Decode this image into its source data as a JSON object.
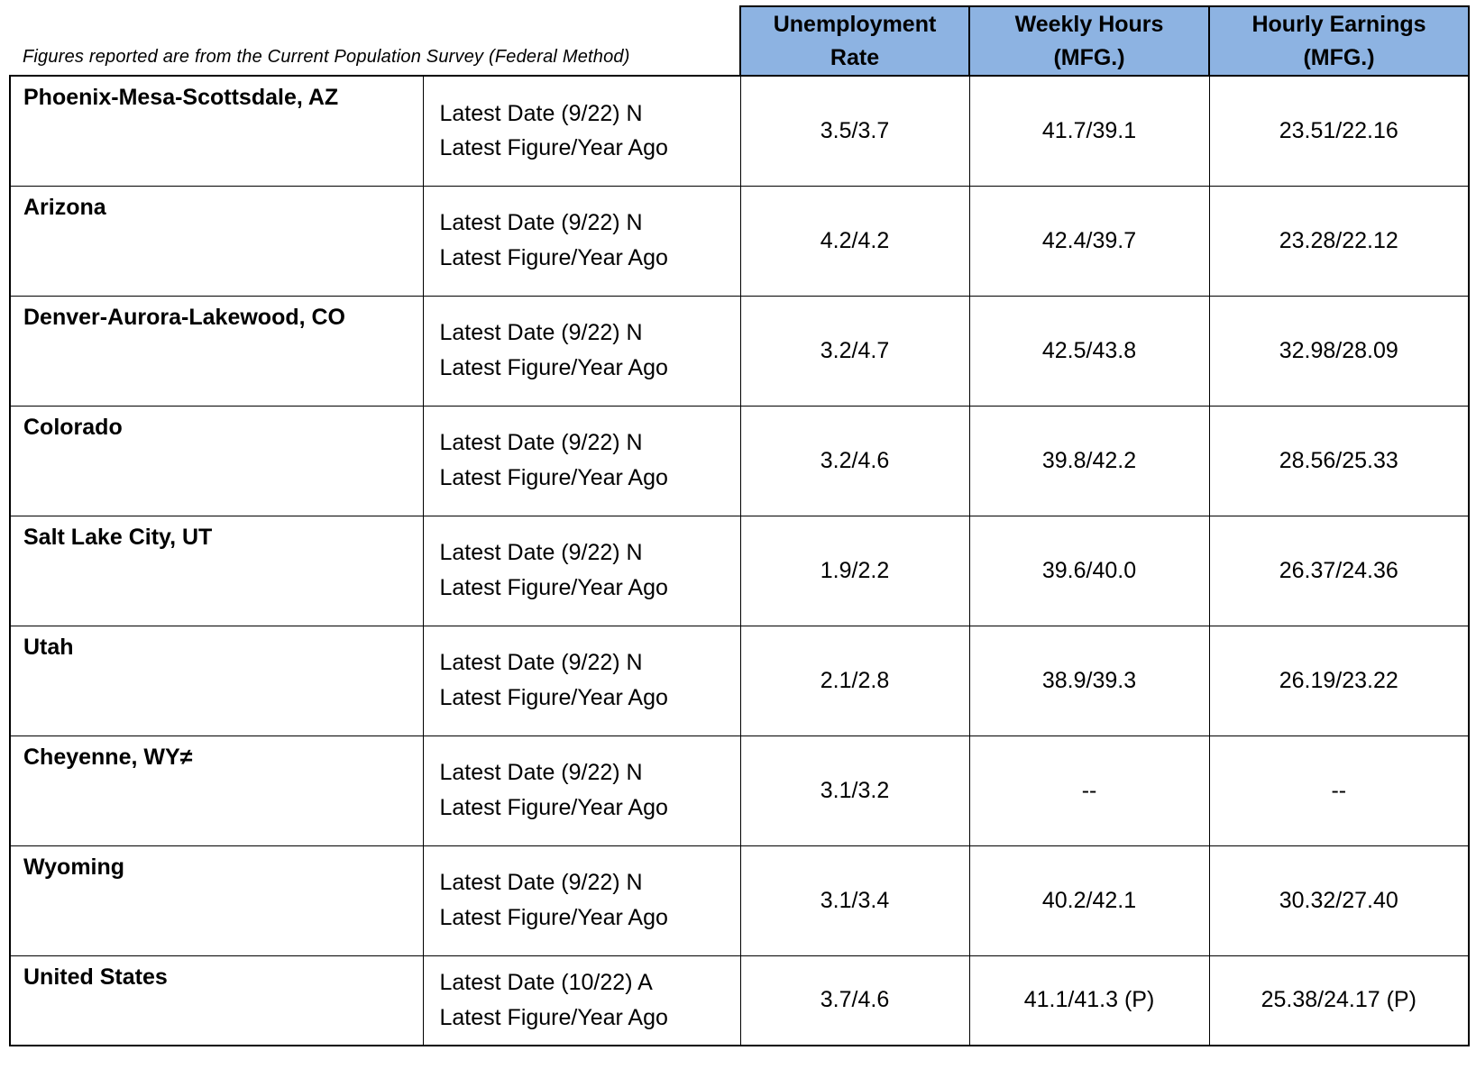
{
  "note": "Figures reported are from the Current Population Survey (Federal Method)",
  "columns": [
    {
      "line1": "Unemployment",
      "line2": "Rate"
    },
    {
      "line1": "Weekly Hours",
      "line2": "(MFG.)"
    },
    {
      "line1": "Hourly Earnings",
      "line2": "(MFG.)"
    }
  ],
  "rows": [
    {
      "region": "Phoenix-Mesa-Scottsdale, AZ",
      "date_label": "Latest Date (9/22) N",
      "figure_label": "Latest Figure/Year Ago",
      "unemployment": "3.5/3.7",
      "hours": "41.7/39.1",
      "earnings": "23.51/22.16"
    },
    {
      "region": "Arizona",
      "date_label": "Latest Date (9/22) N",
      "figure_label": "Latest Figure/Year Ago",
      "unemployment": "4.2/4.2",
      "hours": "42.4/39.7",
      "earnings": "23.28/22.12"
    },
    {
      "region": "Denver-Aurora-Lakewood, CO",
      "date_label": "Latest Date (9/22) N",
      "figure_label": "Latest Figure/Year Ago",
      "unemployment": "3.2/4.7",
      "hours": "42.5/43.8",
      "earnings": "32.98/28.09"
    },
    {
      "region": "Colorado",
      "date_label": "Latest Date (9/22) N",
      "figure_label": "Latest Figure/Year Ago",
      "unemployment": "3.2/4.6",
      "hours": "39.8/42.2",
      "earnings": "28.56/25.33"
    },
    {
      "region": "Salt Lake City, UT",
      "date_label": "Latest Date (9/22) N",
      "figure_label": "Latest Figure/Year Ago",
      "unemployment": "1.9/2.2",
      "hours": "39.6/40.0",
      "earnings": "26.37/24.36"
    },
    {
      "region": "Utah",
      "date_label": "Latest Date (9/22) N",
      "figure_label": "Latest Figure/Year Ago",
      "unemployment": "2.1/2.8",
      "hours": "38.9/39.3",
      "earnings": "26.19/23.22"
    },
    {
      "region": "Cheyenne, WY≠",
      "date_label": "Latest Date (9/22) N",
      "figure_label": "Latest Figure/Year Ago",
      "unemployment": "3.1/3.2",
      "hours": "--",
      "earnings": "--"
    },
    {
      "region": "Wyoming",
      "date_label": "Latest Date (9/22) N",
      "figure_label": "Latest Figure/Year Ago",
      "unemployment": "3.1/3.4",
      "hours": "40.2/42.1",
      "earnings": "30.32/27.40"
    },
    {
      "region": "United States",
      "date_label": "Latest Date (10/22) A",
      "figure_label": "Latest Figure/Year Ago",
      "unemployment": "3.7/4.6",
      "hours": "41.1/41.3 (P)",
      "earnings": "25.38/24.17 (P)"
    }
  ],
  "colors": {
    "header_bg": "#8DB3E2",
    "border": "#000000",
    "text": "#000000"
  }
}
